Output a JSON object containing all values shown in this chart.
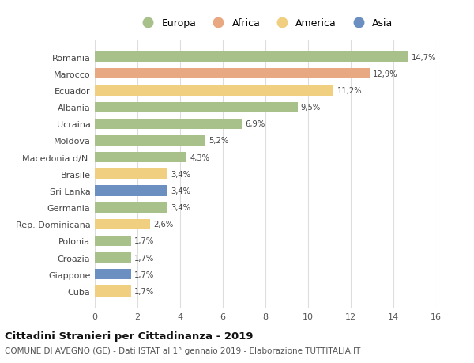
{
  "countries": [
    "Romania",
    "Marocco",
    "Ecuador",
    "Albania",
    "Ucraina",
    "Moldova",
    "Macedonia d/N.",
    "Brasile",
    "Sri Lanka",
    "Germania",
    "Rep. Dominicana",
    "Polonia",
    "Croazia",
    "Giappone",
    "Cuba"
  ],
  "values": [
    14.7,
    12.9,
    11.2,
    9.5,
    6.9,
    5.2,
    4.3,
    3.4,
    3.4,
    3.4,
    2.6,
    1.7,
    1.7,
    1.7,
    1.7
  ],
  "labels": [
    "14,7%",
    "12,9%",
    "11,2%",
    "9,5%",
    "6,9%",
    "5,2%",
    "4,3%",
    "3,4%",
    "3,4%",
    "3,4%",
    "2,6%",
    "1,7%",
    "1,7%",
    "1,7%",
    "1,7%"
  ],
  "continents": [
    "Europa",
    "Africa",
    "America",
    "Europa",
    "Europa",
    "Europa",
    "Europa",
    "America",
    "Asia",
    "Europa",
    "America",
    "Europa",
    "Europa",
    "Asia",
    "America"
  ],
  "colors": {
    "Europa": "#a8c08a",
    "Africa": "#e8a882",
    "America": "#f0d080",
    "Asia": "#6a8fc0"
  },
  "legend_order": [
    "Europa",
    "Africa",
    "America",
    "Asia"
  ],
  "xlim": [
    0,
    16
  ],
  "xticks": [
    0,
    2,
    4,
    6,
    8,
    10,
    12,
    14,
    16
  ],
  "title": "Cittadini Stranieri per Cittadinanza - 2019",
  "subtitle": "COMUNE DI AVEGNO (GE) - Dati ISTAT al 1° gennaio 2019 - Elaborazione TUTTITALIA.IT",
  "bg_color": "#ffffff",
  "grid_color": "#dddddd"
}
